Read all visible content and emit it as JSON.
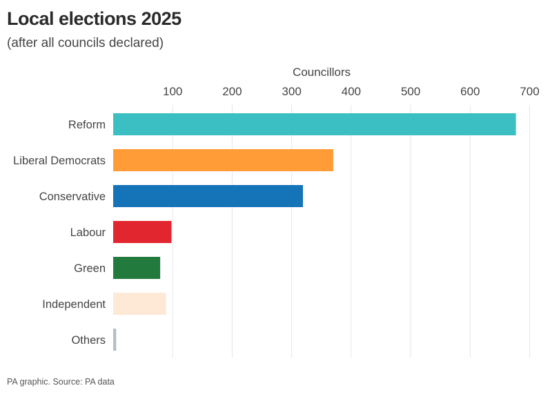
{
  "title": "Local elections 2025",
  "subtitle": "(after all councils declared)",
  "source": "PA graphic. Source: PA data",
  "chart_data": {
    "type": "bar",
    "orientation": "horizontal",
    "title": "Local elections 2025",
    "subtitle": "(after all councils declared)",
    "xlabel": "Councillors",
    "ylabel": "",
    "xlim": [
      0,
      700
    ],
    "xticks": [
      100,
      200,
      300,
      400,
      500,
      600,
      700
    ],
    "grid": true,
    "axis_position": "top",
    "categories": [
      "Reform",
      "Liberal Democrats",
      "Conservative",
      "Labour",
      "Green",
      "Independent",
      "Others"
    ],
    "values": [
      677,
      370,
      319,
      98,
      79,
      89,
      5
    ],
    "colors": [
      "#3cbfc2",
      "#ff9c38",
      "#1573b8",
      "#e2262f",
      "#237a3d",
      "#fee9d7",
      "#b4bec8"
    ]
  }
}
